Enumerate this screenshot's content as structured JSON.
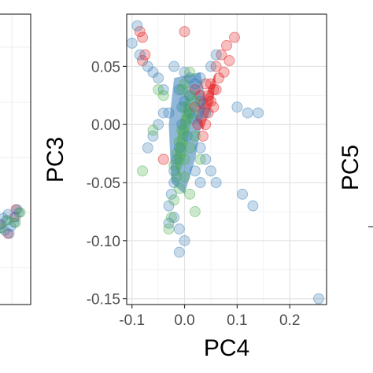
{
  "chart_data": [
    {
      "type": "scatter",
      "xlabel": "",
      "ylabel": "",
      "partial": "left panel, cropped at image edge",
      "series": [
        {
          "color": "#E41A1C",
          "points": [
            [
              0.0,
              0.0
            ]
          ]
        },
        {
          "color": "#377EB8",
          "points": [
            [
              0.0,
              0.0
            ]
          ]
        },
        {
          "color": "#4DAF4A",
          "points": [
            [
              0.0,
              0.0
            ]
          ]
        }
      ]
    },
    {
      "type": "scatter",
      "xlabel": "PC4",
      "ylabel": "PC3",
      "xlim": [
        -0.11,
        0.27
      ],
      "ylim": [
        -0.155,
        0.095
      ],
      "x_ticks": [
        -0.1,
        0.0,
        0.1,
        0.2
      ],
      "x_tick_labels": [
        "-0.1",
        "0.0",
        "0.1",
        "0.2"
      ],
      "y_ticks": [
        0.05,
        0.0,
        -0.05,
        -0.1,
        -0.15
      ],
      "y_tick_labels": [
        "0.05",
        "0.00",
        "-0.05",
        "-0.10",
        "-0.15"
      ],
      "grid": true,
      "series": [
        {
          "color": "#E41A1C",
          "points": [
            [
              -0.085,
              0.08
            ],
            [
              -0.08,
              0.075
            ],
            [
              -0.075,
              0.06
            ],
            [
              -0.08,
              0.055
            ],
            [
              0.0,
              0.08
            ],
            [
              0.095,
              0.075
            ],
            [
              0.08,
              0.068
            ],
            [
              0.085,
              0.055
            ],
            [
              0.07,
              0.06
            ],
            [
              0.06,
              0.05
            ],
            [
              0.075,
              0.045
            ],
            [
              0.065,
              0.04
            ],
            [
              0.055,
              0.03
            ],
            [
              0.05,
              0.02
            ],
            [
              0.045,
              0.01
            ],
            [
              0.04,
              0.0
            ],
            [
              0.035,
              -0.01
            ],
            [
              0.03,
              0.025
            ],
            [
              0.02,
              0.015
            ],
            [
              0.04,
              0.035
            ],
            [
              0.06,
              0.03
            ],
            [
              0.055,
              0.015
            ],
            [
              0.045,
              0.025
            ],
            [
              0.025,
              0.0
            ],
            [
              0.035,
              0.018
            ],
            [
              0.05,
              0.035
            ],
            [
              0.02,
              0.03
            ],
            [
              -0.04,
              -0.03
            ]
          ]
        },
        {
          "color": "#377EB8",
          "points": [
            [
              -0.1,
              0.07
            ],
            [
              -0.09,
              0.085
            ],
            [
              -0.085,
              0.06
            ],
            [
              -0.07,
              0.05
            ],
            [
              -0.05,
              0.04
            ],
            [
              -0.04,
              0.03
            ],
            [
              -0.06,
              0.045
            ],
            [
              -0.02,
              0.05
            ],
            [
              0.0,
              0.045
            ],
            [
              0.01,
              0.04
            ],
            [
              0.02,
              0.035
            ],
            [
              -0.01,
              0.03
            ],
            [
              0.0,
              0.02
            ],
            [
              0.01,
              0.01
            ],
            [
              -0.005,
              0.0
            ],
            [
              0.005,
              -0.01
            ],
            [
              -0.01,
              -0.02
            ],
            [
              -0.015,
              -0.03
            ],
            [
              -0.02,
              -0.04
            ],
            [
              -0.02,
              -0.05
            ],
            [
              -0.025,
              -0.06
            ],
            [
              -0.03,
              -0.07
            ],
            [
              -0.02,
              -0.08
            ],
            [
              -0.01,
              -0.09
            ],
            [
              0.0,
              -0.1
            ],
            [
              -0.04,
              0.01
            ],
            [
              -0.05,
              0.0
            ],
            [
              -0.06,
              -0.01
            ],
            [
              -0.07,
              -0.02
            ],
            [
              0.03,
              0.02
            ],
            [
              0.04,
              0.01
            ],
            [
              0.03,
              -0.02
            ],
            [
              0.04,
              -0.03
            ],
            [
              0.05,
              -0.04
            ],
            [
              0.06,
              -0.05
            ],
            [
              0.03,
              -0.05
            ],
            [
              0.02,
              -0.04
            ],
            [
              0.11,
              -0.06
            ],
            [
              0.13,
              -0.07
            ],
            [
              0.12,
              0.01
            ],
            [
              0.1,
              0.015
            ],
            [
              0.14,
              0.01
            ],
            [
              0.05,
              0.05
            ],
            [
              0.06,
              0.06
            ],
            [
              0.03,
              0.04
            ],
            [
              0.015,
              0.005
            ],
            [
              -0.005,
              0.015
            ],
            [
              0.255,
              -0.15
            ],
            [
              -0.01,
              -0.11
            ],
            [
              -0.03,
              -0.085
            ],
            [
              0.01,
              0.025
            ],
            [
              -0.03,
              0.01
            ]
          ]
        },
        {
          "color": "#4DAF4A",
          "points": [
            [
              0.01,
              0.045
            ],
            [
              0.0,
              0.035
            ],
            [
              0.01,
              0.025
            ],
            [
              0.0,
              0.015
            ],
            [
              0.005,
              0.005
            ],
            [
              -0.005,
              -0.005
            ],
            [
              -0.01,
              -0.015
            ],
            [
              -0.015,
              -0.025
            ],
            [
              -0.02,
              -0.035
            ],
            [
              -0.015,
              -0.045
            ],
            [
              -0.01,
              -0.055
            ],
            [
              -0.02,
              -0.065
            ],
            [
              -0.025,
              -0.08
            ],
            [
              -0.03,
              -0.09
            ],
            [
              -0.04,
              0.025
            ],
            [
              -0.05,
              0.03
            ],
            [
              -0.06,
              -0.005
            ],
            [
              -0.08,
              -0.04
            ],
            [
              0.02,
              -0.01
            ],
            [
              0.03,
              -0.03
            ],
            [
              0.01,
              -0.02
            ],
            [
              0.0,
              -0.03
            ],
            [
              0.015,
              0.01
            ],
            [
              0.02,
              0.02
            ],
            [
              -0.005,
              0.03
            ],
            [
              0.0,
              -0.045
            ],
            [
              0.01,
              -0.06
            ],
            [
              0.02,
              -0.075
            ]
          ]
        }
      ]
    },
    {
      "type": "scatter",
      "xlabel": "",
      "ylabel": "PC5",
      "partial": "right panel, cropped at image edge",
      "series": []
    }
  ]
}
